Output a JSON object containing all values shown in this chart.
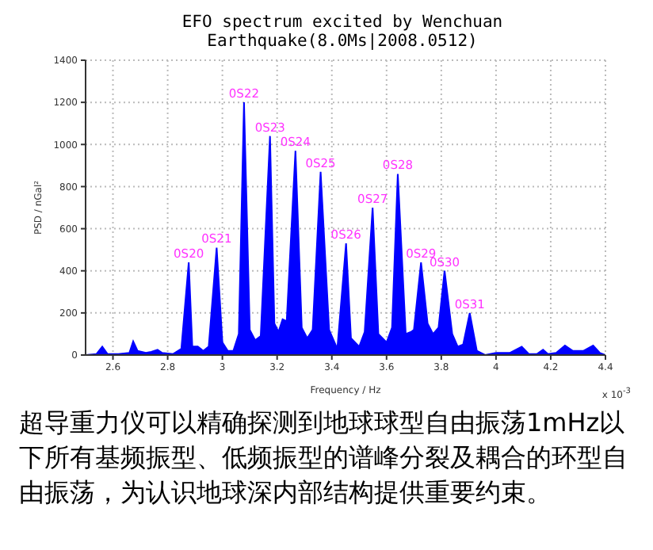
{
  "chart_data": {
    "type": "area",
    "title": "EFO spectrum excited by Wenchuan Earthquake(8.0Ms|2008.0512)",
    "xlabel": "Frequency / Hz",
    "ylabel": "PSD / nGal²",
    "x": [
      2.5,
      2.54,
      2.561,
      2.58,
      2.62,
      2.66,
      2.674,
      2.69,
      2.72,
      2.74,
      2.763,
      2.78,
      2.82,
      2.85,
      2.877,
      2.89,
      2.91,
      2.93,
      2.95,
      2.979,
      3.0,
      3.02,
      3.04,
      3.06,
      3.079,
      3.1,
      3.12,
      3.14,
      3.174,
      3.19,
      3.205,
      3.22,
      3.235,
      3.267,
      3.29,
      3.31,
      3.33,
      3.359,
      3.39,
      3.42,
      3.452,
      3.47,
      3.5,
      3.52,
      3.549,
      3.57,
      3.6,
      3.62,
      3.641,
      3.67,
      3.69,
      3.7,
      3.726,
      3.75,
      3.77,
      3.79,
      3.812,
      3.84,
      3.86,
      3.88,
      3.904,
      3.93,
      3.96,
      4.0,
      4.05,
      4.094,
      4.12,
      4.15,
      4.172,
      4.19,
      4.22,
      4.252,
      4.28,
      4.32,
      4.355,
      4.38,
      4.4
    ],
    "series": [
      {
        "color": "#0000ff",
        "values": [
          0,
          5,
          40,
          5,
          5,
          10,
          65,
          20,
          10,
          15,
          25,
          10,
          5,
          30,
          440,
          40,
          40,
          20,
          40,
          510,
          60,
          20,
          20,
          100,
          1200,
          120,
          70,
          90,
          1040,
          150,
          110,
          170,
          160,
          970,
          130,
          80,
          120,
          870,
          120,
          30,
          530,
          80,
          40,
          110,
          700,
          100,
          60,
          130,
          860,
          100,
          110,
          120,
          440,
          150,
          100,
          130,
          400,
          100,
          40,
          50,
          200,
          20,
          0,
          10,
          10,
          40,
          5,
          5,
          25,
          5,
          10,
          45,
          20,
          20,
          45,
          10,
          0
        ]
      }
    ],
    "xlim": [
      2.5,
      4.4
    ],
    "xticks": [
      2.6,
      2.8,
      3,
      3.2,
      3.4,
      3.6,
      3.8,
      4,
      4.2,
      4.4
    ],
    "ylim": [
      0,
      1400
    ],
    "yticks": [
      0,
      200,
      400,
      600,
      800,
      1000,
      1200,
      1400
    ],
    "grid": true,
    "annotations": [
      {
        "text": "0S20",
        "x": 2.877,
        "y": 440
      },
      {
        "text": "0S21",
        "x": 2.979,
        "y": 510
      },
      {
        "text": "0S22",
        "x": 3.079,
        "y": 1200
      },
      {
        "text": "0S23",
        "x": 3.174,
        "y": 1040
      },
      {
        "text": "0S24",
        "x": 3.267,
        "y": 970
      },
      {
        "text": "0S25",
        "x": 3.359,
        "y": 870
      },
      {
        "text": "0S26",
        "x": 3.452,
        "y": 530
      },
      {
        "text": "0S27",
        "x": 3.549,
        "y": 700
      },
      {
        "text": "0S28",
        "x": 3.641,
        "y": 860
      },
      {
        "text": "0S29",
        "x": 3.726,
        "y": 440
      },
      {
        "text": "0S30",
        "x": 3.812,
        "y": 400
      },
      {
        "text": "0S31",
        "x": 3.904,
        "y": 200
      },
      "x 10$^{-3}$",
      "超导重力仪可以精确探测到地球球型自由振荡1mHz以下所有基频振型、低频振型的谱峰分裂及耦合的环型自由振荡，为认识地球深内部结构提供重要约束。"
    ]
  }
}
